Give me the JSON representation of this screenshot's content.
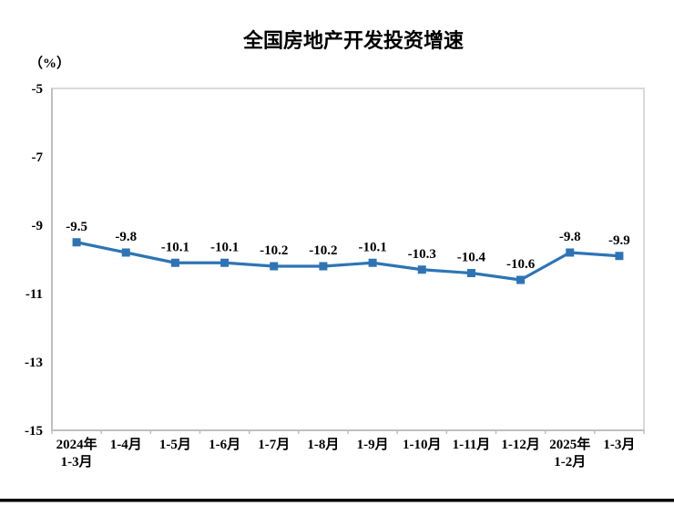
{
  "chart_data": {
    "type": "line",
    "title": "全国房地产开发投资增速",
    "unit_label": "（%）",
    "categories": [
      [
        "2024年",
        "1-3月"
      ],
      [
        "1-4月"
      ],
      [
        "1-5月"
      ],
      [
        "1-6月"
      ],
      [
        "1-7月"
      ],
      [
        "1-8月"
      ],
      [
        "1-9月"
      ],
      [
        "1-10月"
      ],
      [
        "1-11月"
      ],
      [
        "1-12月"
      ],
      [
        "2025年",
        "1-2月"
      ],
      [
        "1-3月"
      ]
    ],
    "values": [
      -9.5,
      -9.8,
      -10.1,
      -10.1,
      -10.2,
      -10.2,
      -10.1,
      -10.3,
      -10.4,
      -10.6,
      -9.8,
      -9.9
    ],
    "data_labels": [
      "-9.5",
      "-9.8",
      "-10.1",
      "-10.1",
      "-10.2",
      "-10.2",
      "-10.1",
      "-10.3",
      "-10.4",
      "-10.6",
      "-9.8",
      "-9.9"
    ],
    "yticks": [
      -5,
      -7,
      -9,
      -11,
      -13,
      -15
    ],
    "ytick_labels": [
      "-5",
      "-7",
      "-9",
      "-11",
      "-13",
      "-15"
    ],
    "ylim": [
      -15,
      -5
    ],
    "xlabel": "",
    "ylabel": "(%)",
    "grid": false,
    "legend_position": "none",
    "colors": {
      "line": "#2E74B5",
      "marker": "#2E74B5",
      "plot_border": "#D9D9D9",
      "axis": "#BFBFBF",
      "text": "#000000",
      "bottom_rule": "#000000"
    }
  }
}
